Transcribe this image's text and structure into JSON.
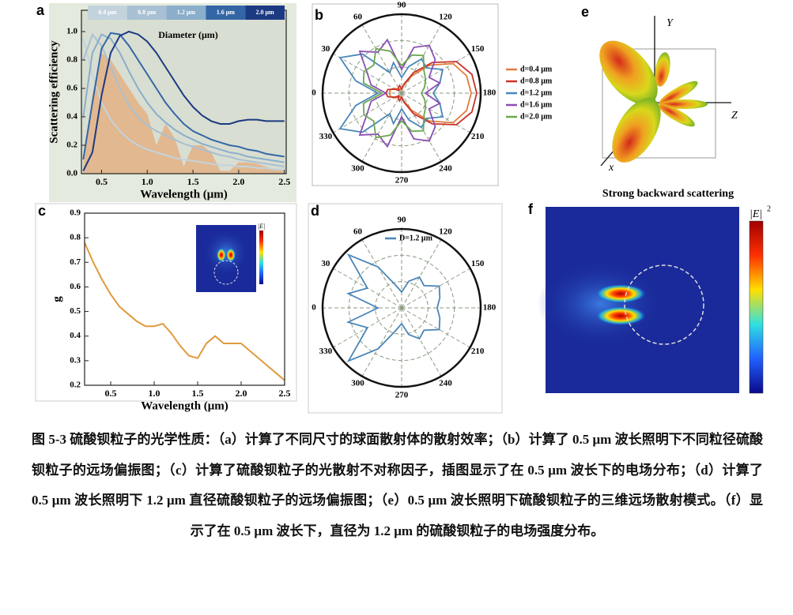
{
  "chart_data": [
    {
      "panel": "a",
      "type": "line",
      "xlabel": "Wavelength (μm)",
      "ylabel": "Scattering efficiency",
      "legend_title": "Diameter (μm)",
      "x": [
        0.3,
        0.4,
        0.5,
        0.6,
        0.7,
        0.8,
        0.9,
        1.0,
        1.1,
        1.2,
        1.3,
        1.4,
        1.5,
        1.6,
        1.7,
        1.8,
        1.9,
        2.0,
        2.1,
        2.2,
        2.3,
        2.4,
        2.5
      ],
      "series": [
        {
          "style": "area",
          "color": "#e3b185",
          "values": [
            0.05,
            0.55,
            0.85,
            0.8,
            0.7,
            0.6,
            0.5,
            0.42,
            0.2,
            0.35,
            0.25,
            0.05,
            0.2,
            0.2,
            0.15,
            0.02,
            0.02,
            0.08,
            0.08,
            0.07,
            0.05,
            0.03,
            0.02
          ]
        },
        {
          "name": "0.4 μm",
          "color": "#c3d3dd",
          "values": [
            0.95,
            0.7,
            0.5,
            0.38,
            0.3,
            0.24,
            0.2,
            0.17,
            0.15,
            0.13,
            0.11,
            0.1,
            0.09,
            0.08,
            0.07,
            0.06,
            0.06,
            0.05,
            0.05,
            0.04,
            0.04,
            0.03,
            0.03
          ]
        },
        {
          "name": "0.8 μm",
          "color": "#a8c0d3",
          "values": [
            0.8,
            0.98,
            0.9,
            0.75,
            0.6,
            0.48,
            0.4,
            0.34,
            0.3,
            0.27,
            0.24,
            0.21,
            0.19,
            0.17,
            0.15,
            0.13,
            0.12,
            0.1,
            0.09,
            0.08,
            0.07,
            0.06,
            0.05
          ]
        },
        {
          "name": "1.2 μm",
          "color": "#8aaecb",
          "values": [
            0.4,
            0.85,
            0.98,
            0.95,
            0.85,
            0.72,
            0.6,
            0.5,
            0.42,
            0.36,
            0.31,
            0.27,
            0.24,
            0.21,
            0.19,
            0.17,
            0.15,
            0.14,
            0.12,
            0.11,
            0.1,
            0.09,
            0.08
          ]
        },
        {
          "name": "1.6 μm",
          "color": "#3466a6",
          "values": [
            0.1,
            0.5,
            0.88,
            0.99,
            0.98,
            0.9,
            0.8,
            0.7,
            0.6,
            0.5,
            0.42,
            0.35,
            0.3,
            0.27,
            0.24,
            0.22,
            0.2,
            0.19,
            0.17,
            0.16,
            0.14,
            0.13,
            0.12
          ]
        },
        {
          "name": "2.0 μm",
          "color": "#1c3a82",
          "values": [
            0.02,
            0.15,
            0.55,
            0.85,
            0.97,
            1.0,
            0.98,
            0.93,
            0.85,
            0.75,
            0.65,
            0.55,
            0.47,
            0.41,
            0.37,
            0.35,
            0.35,
            0.37,
            0.38,
            0.38,
            0.37,
            0.37,
            0.37
          ]
        }
      ],
      "xlim": [
        0.28,
        2.52
      ],
      "ylim": [
        0,
        1.15
      ],
      "xticks": [
        0.5,
        {
          "value": 1,
          "label": "1.0"
        },
        1.5,
        {
          "value": 2,
          "label": "2.0"
        },
        2.5
      ],
      "yticks": [
        {
          "value": 0,
          "label": "0.0"
        },
        0.2,
        0.4,
        0.6,
        0.8,
        {
          "value": 1,
          "label": "1.0"
        }
      ]
    },
    {
      "panel": "b",
      "type": "polar",
      "theta": [
        0,
        15,
        30,
        45,
        60,
        75,
        90,
        105,
        120,
        135,
        150,
        165,
        180,
        195,
        210,
        225,
        240,
        255,
        270,
        285,
        300,
        315,
        330,
        345
      ],
      "thetaticks": [
        0,
        30,
        60,
        90,
        120,
        150,
        180,
        210,
        240,
        270,
        300,
        330
      ],
      "rlim": [
        0,
        1
      ],
      "series": [
        {
          "name": "d=0.4 μm",
          "color": "#e07b3c",
          "values": [
            0.15,
            0.15,
            0.12,
            0.08,
            0.06,
            0.05,
            0.05,
            0.1,
            0.25,
            0.5,
            0.75,
            0.85,
            0.88,
            0.85,
            0.75,
            0.5,
            0.25,
            0.1,
            0.05,
            0.05,
            0.06,
            0.08,
            0.12,
            0.15
          ]
        },
        {
          "name": "d=0.8 μm",
          "color": "#c8332a",
          "values": [
            0.2,
            0.18,
            0.1,
            0.05,
            0.08,
            0.1,
            0.05,
            0.12,
            0.3,
            0.55,
            0.8,
            0.92,
            0.95,
            0.92,
            0.8,
            0.55,
            0.3,
            0.12,
            0.05,
            0.1,
            0.08,
            0.05,
            0.1,
            0.18
          ]
        },
        {
          "name": "d=1.2 μm",
          "color": "#4a86b8",
          "values": [
            0.3,
            0.6,
            0.9,
            0.7,
            0.3,
            0.4,
            0.2,
            0.35,
            0.5,
            0.45,
            0.6,
            0.5,
            0.4,
            0.5,
            0.6,
            0.45,
            0.5,
            0.35,
            0.2,
            0.4,
            0.3,
            0.7,
            0.9,
            0.6
          ]
        },
        {
          "name": "d=1.6 μm",
          "color": "#8a4fb5",
          "values": [
            0.2,
            0.4,
            0.5,
            0.75,
            0.6,
            0.7,
            0.3,
            0.6,
            0.7,
            0.6,
            0.4,
            0.5,
            0.3,
            0.5,
            0.4,
            0.6,
            0.7,
            0.6,
            0.3,
            0.7,
            0.6,
            0.75,
            0.5,
            0.4
          ]
        },
        {
          "name": "d=2.0 μm",
          "color": "#6aa84f",
          "values": [
            0.25,
            0.5,
            0.55,
            0.5,
            0.65,
            0.55,
            0.35,
            0.5,
            0.55,
            0.4,
            0.35,
            0.3,
            0.25,
            0.3,
            0.35,
            0.4,
            0.55,
            0.5,
            0.35,
            0.55,
            0.65,
            0.5,
            0.55,
            0.5
          ]
        }
      ]
    },
    {
      "panel": "c",
      "type": "line",
      "xlabel": "Wavelength (μm)",
      "ylabel": "g",
      "inset_label": "|E|",
      "x": [
        0.2,
        0.3,
        0.4,
        0.5,
        0.6,
        0.7,
        0.8,
        0.9,
        1.0,
        1.1,
        1.2,
        1.3,
        1.4,
        1.5,
        1.6,
        1.7,
        1.8,
        1.9,
        2.0,
        2.1,
        2.2,
        2.3,
        2.4,
        2.5
      ],
      "series": [
        {
          "color": "#e09a3e",
          "values": [
            0.78,
            0.7,
            0.63,
            0.57,
            0.52,
            0.49,
            0.46,
            0.44,
            0.44,
            0.45,
            0.41,
            0.36,
            0.32,
            0.31,
            0.37,
            0.4,
            0.37,
            0.37,
            0.37,
            0.34,
            0.31,
            0.28,
            0.25,
            0.22
          ]
        }
      ],
      "xlim": [
        0.2,
        2.5
      ],
      "ylim": [
        0.2,
        0.9
      ],
      "xticks": [
        0.5,
        {
          "value": 1,
          "label": "1.0"
        },
        1.5,
        {
          "value": 2,
          "label": "2.0"
        },
        2.5
      ],
      "yticks": [
        0.2,
        0.3,
        0.4,
        0.5,
        0.6,
        0.7,
        0.8,
        0.9
      ]
    },
    {
      "panel": "d",
      "type": "polar",
      "theta": [
        0,
        15,
        30,
        45,
        60,
        75,
        90,
        105,
        120,
        135,
        150,
        165,
        180,
        195,
        210,
        225,
        240,
        255,
        270,
        285,
        300,
        315,
        330,
        345
      ],
      "thetaticks": [
        0,
        30,
        60,
        90,
        120,
        150,
        180,
        210,
        240,
        270,
        300,
        330
      ],
      "rlim": [
        0,
        1
      ],
      "series": [
        {
          "name": "D=1.2 μm",
          "color": "#4a86b8",
          "values": [
            0.3,
            0.7,
            0.5,
            0.95,
            0.6,
            0.3,
            0.2,
            0.35,
            0.45,
            0.4,
            0.55,
            0.5,
            0.45,
            0.5,
            0.55,
            0.4,
            0.45,
            0.35,
            0.2,
            0.3,
            0.6,
            0.95,
            0.5,
            0.7
          ]
        }
      ]
    }
  ],
  "panel_e": {
    "label": "e",
    "axis_y": "Y",
    "axis_z": "Z",
    "axis_x": "x",
    "caption": "Strong backward scattering"
  },
  "panel_f": {
    "label": "f",
    "colorbar_label": "|E|",
    "colorbar_exponent": "2"
  },
  "caption": "图 5-3 硫酸钡粒子的光学性质：（a）计算了不同尺寸的球面散射体的散射效率；（b）计算了 0.5 μm 波长照明下不同粒径硫酸钡粒子的远场偏振图；（c）计算了硫酸钡粒子的光散射不对称因子，插图显示了在 0.5 μm 波长下的电场分布；（d）计算了 0.5 μm 波长照明下 1.2 μm 直径硫酸钡粒子的远场偏振图；（e）0.5 μm 波长照明下硫酸钡粒子的三维远场散射模式。（f）显示了在 0.5 μm 波长下，直径为 1.2 μm 的硫酸钡粒子的电场强度分布。"
}
